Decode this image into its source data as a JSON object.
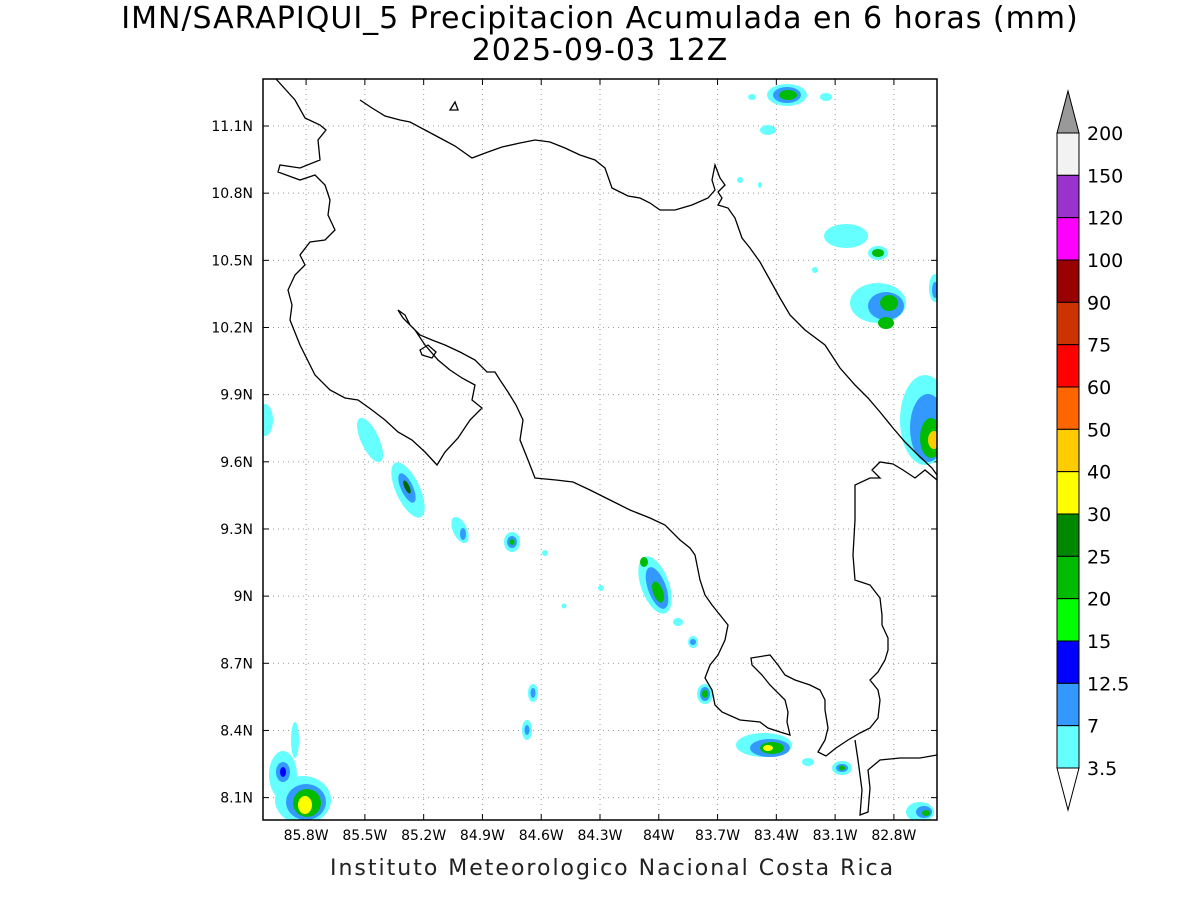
{
  "title": "IMN/SARAPIQUI_5 Precipitacion Acumulada en 6 horas (mm)",
  "subtitle": "2025-09-03 12Z",
  "footer": "Instituto Meteorologico Nacional Costa Rica",
  "map": {
    "lon_range": [
      -86.02,
      -82.58
    ],
    "lat_range": [
      8.0,
      11.31
    ],
    "lon_ticks": [
      "85.8W",
      "85.5W",
      "85.2W",
      "84.9W",
      "84.6W",
      "84.3W",
      "84W",
      "83.7W",
      "83.4W",
      "83.1W",
      "82.8W"
    ],
    "lat_ticks": [
      "11.1N",
      "10.8N",
      "10.5N",
      "10.2N",
      "9.9N",
      "9.6N",
      "9.3N",
      "9N",
      "8.7N",
      "8.4N",
      "8.1N"
    ],
    "grid": "dotted"
  },
  "legend": {
    "labels": [
      "200",
      "150",
      "120",
      "100",
      "90",
      "75",
      "60",
      "50",
      "40",
      "30",
      "25",
      "20",
      "15",
      "12.5",
      "7",
      "3.5"
    ],
    "colors": [
      "#f2f2f2",
      "#9933cc",
      "#ff00ff",
      "#990000",
      "#cc3300",
      "#ff0000",
      "#ff6600",
      "#ffcc00",
      "#ffff00",
      "#008800",
      "#00bb00",
      "#00ff00",
      "#0000ff",
      "#3399ff",
      "#66ffff"
    ],
    "over_color": "#999999",
    "under_color": "#ffffff"
  }
}
